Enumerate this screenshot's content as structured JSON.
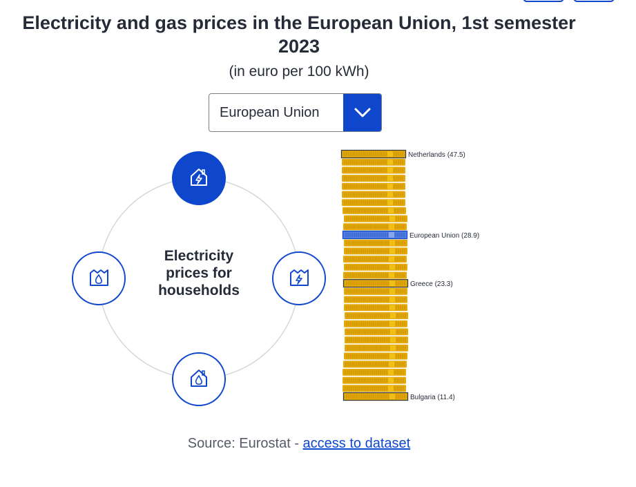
{
  "header": {
    "title": "Electricity and gas prices in the European Union, 1st semester 2023",
    "subtitle": "(in euro per 100 kWh)"
  },
  "dropdown": {
    "selected": "European Union"
  },
  "wheel": {
    "center_label": "Electricity prices for households",
    "nodes": [
      {
        "name": "electricity-households",
        "icon": "house-electricity-icon",
        "active": true
      },
      {
        "name": "electricity-non-households",
        "icon": "factory-electricity-icon",
        "active": false
      },
      {
        "name": "gas-households",
        "icon": "house-gas-icon",
        "active": false
      },
      {
        "name": "gas-non-households",
        "icon": "factory-gas-icon",
        "active": false
      }
    ]
  },
  "chart_data": {
    "type": "bar",
    "labels": [
      {
        "text": "Netherlands (47.5)",
        "index": 0
      },
      {
        "text": "European Union (28.9)",
        "index": 10
      },
      {
        "text": "Greece (23.3)",
        "index": 16
      },
      {
        "text": "Bulgaria (11.4)",
        "index": 30
      }
    ],
    "highlight_index": 10,
    "coin_count": 31,
    "colors": {
      "coin": "#e3a90b",
      "coin_highlight": "#f5c518",
      "eu_coin": "#4f7ee0",
      "accent": "#0e47cb"
    }
  },
  "footer": {
    "source_prefix": "Source: Eurostat - ",
    "link_text": "access to dataset"
  }
}
